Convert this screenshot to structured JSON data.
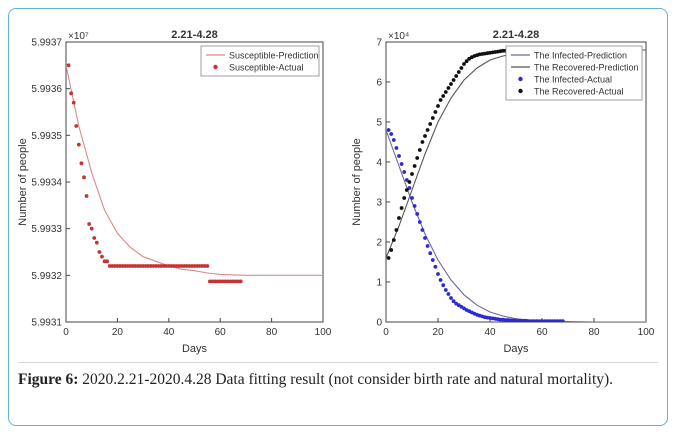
{
  "chart_data": [
    {
      "type": "scatter",
      "title": "2.21-4.28",
      "xlabel": "Days",
      "ylabel": "Number of people",
      "y_exponent": "×10⁷",
      "xlim": [
        0,
        100
      ],
      "ylim": [
        5.9931,
        5.9937
      ],
      "xticks": [
        "0",
        "20",
        "40",
        "60",
        "80",
        "100"
      ],
      "yticks": [
        "5.9931",
        "5.9932",
        "5.9933",
        "5.9934",
        "5.9935",
        "5.9936",
        "5.9937"
      ],
      "legend_position": "top-right",
      "series": [
        {
          "name": "Susceptible-Prediction",
          "kind": "line",
          "color": "#d98b8b",
          "x": [
            0,
            5,
            10,
            15,
            20,
            25,
            30,
            35,
            40,
            45,
            50,
            55,
            60,
            70,
            80,
            90,
            100
          ],
          "y": [
            5.99365,
            5.99352,
            5.99342,
            5.99334,
            5.99329,
            5.99326,
            5.99324,
            5.99323,
            5.99322,
            5.993213,
            5.99321,
            5.993205,
            5.993202,
            5.9932,
            5.9932,
            5.9932,
            5.9932
          ]
        },
        {
          "name": "Susceptible-Actual",
          "kind": "markers",
          "color": "#c83232",
          "x": [
            1,
            2,
            3,
            4,
            5,
            6,
            7,
            8,
            9,
            10,
            11,
            12,
            13,
            14,
            15,
            16,
            17,
            18,
            19,
            20,
            21,
            22,
            23,
            24,
            25,
            26,
            27,
            28,
            29,
            30,
            31,
            32,
            33,
            34,
            35,
            36,
            37,
            38,
            39,
            40,
            41,
            42,
            43,
            44,
            45,
            46,
            47,
            48,
            49,
            50,
            51,
            52,
            53,
            54,
            55,
            56,
            57,
            58,
            59,
            60,
            61,
            62,
            63,
            64,
            65,
            66,
            67,
            68
          ],
          "y": [
            5.99365,
            5.99359,
            5.99357,
            5.99352,
            5.99348,
            5.99344,
            5.99341,
            5.99337,
            5.99331,
            5.9933,
            5.99328,
            5.99327,
            5.99325,
            5.99324,
            5.99323,
            5.99323,
            5.99322,
            5.99322,
            5.99322,
            5.99322,
            5.99322,
            5.99322,
            5.99322,
            5.99322,
            5.99322,
            5.99322,
            5.99322,
            5.99322,
            5.99322,
            5.99322,
            5.99322,
            5.99322,
            5.99322,
            5.99322,
            5.99322,
            5.99322,
            5.99322,
            5.99322,
            5.99322,
            5.99322,
            5.99322,
            5.99322,
            5.99322,
            5.99322,
            5.99322,
            5.99322,
            5.99322,
            5.99322,
            5.99322,
            5.99322,
            5.99322,
            5.99322,
            5.99322,
            5.99322,
            5.99322,
            5.993187,
            5.993187,
            5.993187,
            5.993187,
            5.993187,
            5.993187,
            5.993187,
            5.993187,
            5.993187,
            5.993187,
            5.993187,
            5.993187,
            5.993187
          ]
        }
      ]
    },
    {
      "type": "scatter",
      "title": "2.21-4.28",
      "xlabel": "Days",
      "ylabel": "Number of people",
      "y_exponent": "×10⁴",
      "xlim": [
        0,
        100
      ],
      "ylim": [
        0,
        7
      ],
      "xticks": [
        "0",
        "20",
        "40",
        "60",
        "80",
        "100"
      ],
      "yticks": [
        "0",
        "1",
        "2",
        "3",
        "4",
        "5",
        "6",
        "7"
      ],
      "legend_position": "top-right",
      "series": [
        {
          "name": "The Infected-Prediction",
          "kind": "line",
          "color": "#6a6a9a",
          "x": [
            0,
            5,
            10,
            15,
            20,
            25,
            30,
            35,
            40,
            45,
            50,
            55,
            60,
            70,
            80,
            90,
            100
          ],
          "y": [
            4.8,
            3.9,
            3.0,
            2.2,
            1.55,
            1.05,
            0.68,
            0.42,
            0.25,
            0.15,
            0.08,
            0.05,
            0.03,
            0.01,
            0.0,
            0.0,
            0.0
          ]
        },
        {
          "name": "The Recovered-Prediction",
          "kind": "line",
          "color": "#555555",
          "x": [
            0,
            5,
            10,
            15,
            20,
            25,
            30,
            35,
            40,
            45,
            50,
            55,
            60,
            70,
            80,
            90,
            100
          ],
          "y": [
            1.6,
            2.4,
            3.3,
            4.2,
            5.0,
            5.6,
            6.05,
            6.35,
            6.55,
            6.65,
            6.72,
            6.76,
            6.78,
            6.8,
            6.8,
            6.8,
            6.8
          ]
        },
        {
          "name": "The Infected-Actual",
          "kind": "markers",
          "color": "#2b2bd0",
          "x": [
            1,
            2,
            3,
            4,
            5,
            6,
            7,
            8,
            9,
            10,
            11,
            12,
            13,
            14,
            15,
            16,
            17,
            18,
            19,
            20,
            21,
            22,
            23,
            24,
            25,
            26,
            27,
            28,
            29,
            30,
            31,
            32,
            33,
            34,
            35,
            36,
            37,
            38,
            39,
            40,
            41,
            42,
            43,
            44,
            45,
            46,
            47,
            48,
            49,
            50,
            51,
            52,
            53,
            54,
            55,
            56,
            57,
            58,
            59,
            60,
            61,
            62,
            63,
            64,
            65,
            66,
            67,
            68
          ],
          "y": [
            4.8,
            4.7,
            4.55,
            4.35,
            4.15,
            3.95,
            3.75,
            3.55,
            3.35,
            3.1,
            2.9,
            2.7,
            2.5,
            2.3,
            2.1,
            1.9,
            1.72,
            1.55,
            1.38,
            1.2,
            1.05,
            0.92,
            0.8,
            0.7,
            0.6,
            0.52,
            0.46,
            0.42,
            0.38,
            0.34,
            0.3,
            0.27,
            0.24,
            0.21,
            0.18,
            0.16,
            0.14,
            0.12,
            0.11,
            0.1,
            0.09,
            0.08,
            0.07,
            0.06,
            0.06,
            0.05,
            0.05,
            0.04,
            0.04,
            0.04,
            0.03,
            0.03,
            0.03,
            0.03,
            0.02,
            0.02,
            0.02,
            0.02,
            0.02,
            0.02,
            0.02,
            0.02,
            0.02,
            0.02,
            0.02,
            0.02,
            0.02,
            0.02
          ]
        },
        {
          "name": "The Recovered-Actual",
          "kind": "markers",
          "color": "#111111",
          "x": [
            1,
            2,
            3,
            4,
            5,
            6,
            7,
            8,
            9,
            10,
            11,
            12,
            13,
            14,
            15,
            16,
            17,
            18,
            19,
            20,
            21,
            22,
            23,
            24,
            25,
            26,
            27,
            28,
            29,
            30,
            31,
            32,
            33,
            34,
            35,
            36,
            37,
            38,
            39,
            40,
            41,
            42,
            43,
            44,
            45,
            46,
            47,
            48,
            49,
            50,
            51,
            52,
            53,
            54,
            55,
            56,
            57,
            58,
            59,
            60,
            61,
            62,
            63,
            64,
            65,
            66,
            67,
            68
          ],
          "y": [
            1.6,
            1.8,
            2.05,
            2.3,
            2.6,
            2.85,
            3.1,
            3.3,
            3.5,
            3.7,
            3.9,
            4.1,
            4.3,
            4.5,
            4.65,
            4.8,
            4.95,
            5.1,
            5.25,
            5.4,
            5.55,
            5.65,
            5.75,
            5.85,
            5.95,
            6.05,
            6.15,
            6.25,
            6.35,
            6.45,
            6.52,
            6.58,
            6.62,
            6.65,
            6.67,
            6.69,
            6.7,
            6.71,
            6.72,
            6.73,
            6.74,
            6.75,
            6.76,
            6.77,
            6.78,
            6.78,
            6.79,
            6.79,
            6.8,
            6.8,
            6.8,
            6.8,
            6.8,
            6.8,
            6.8,
            6.8,
            6.8,
            6.8,
            6.8,
            6.8,
            6.8,
            6.8,
            6.8,
            6.8,
            6.8,
            6.8,
            6.8,
            6.8
          ]
        }
      ]
    }
  ],
  "caption": {
    "label": "Figure 6:",
    "text": " 2020.2.21-2020.4.28 Data fitting result (not consider birth rate and natural mortality)."
  }
}
